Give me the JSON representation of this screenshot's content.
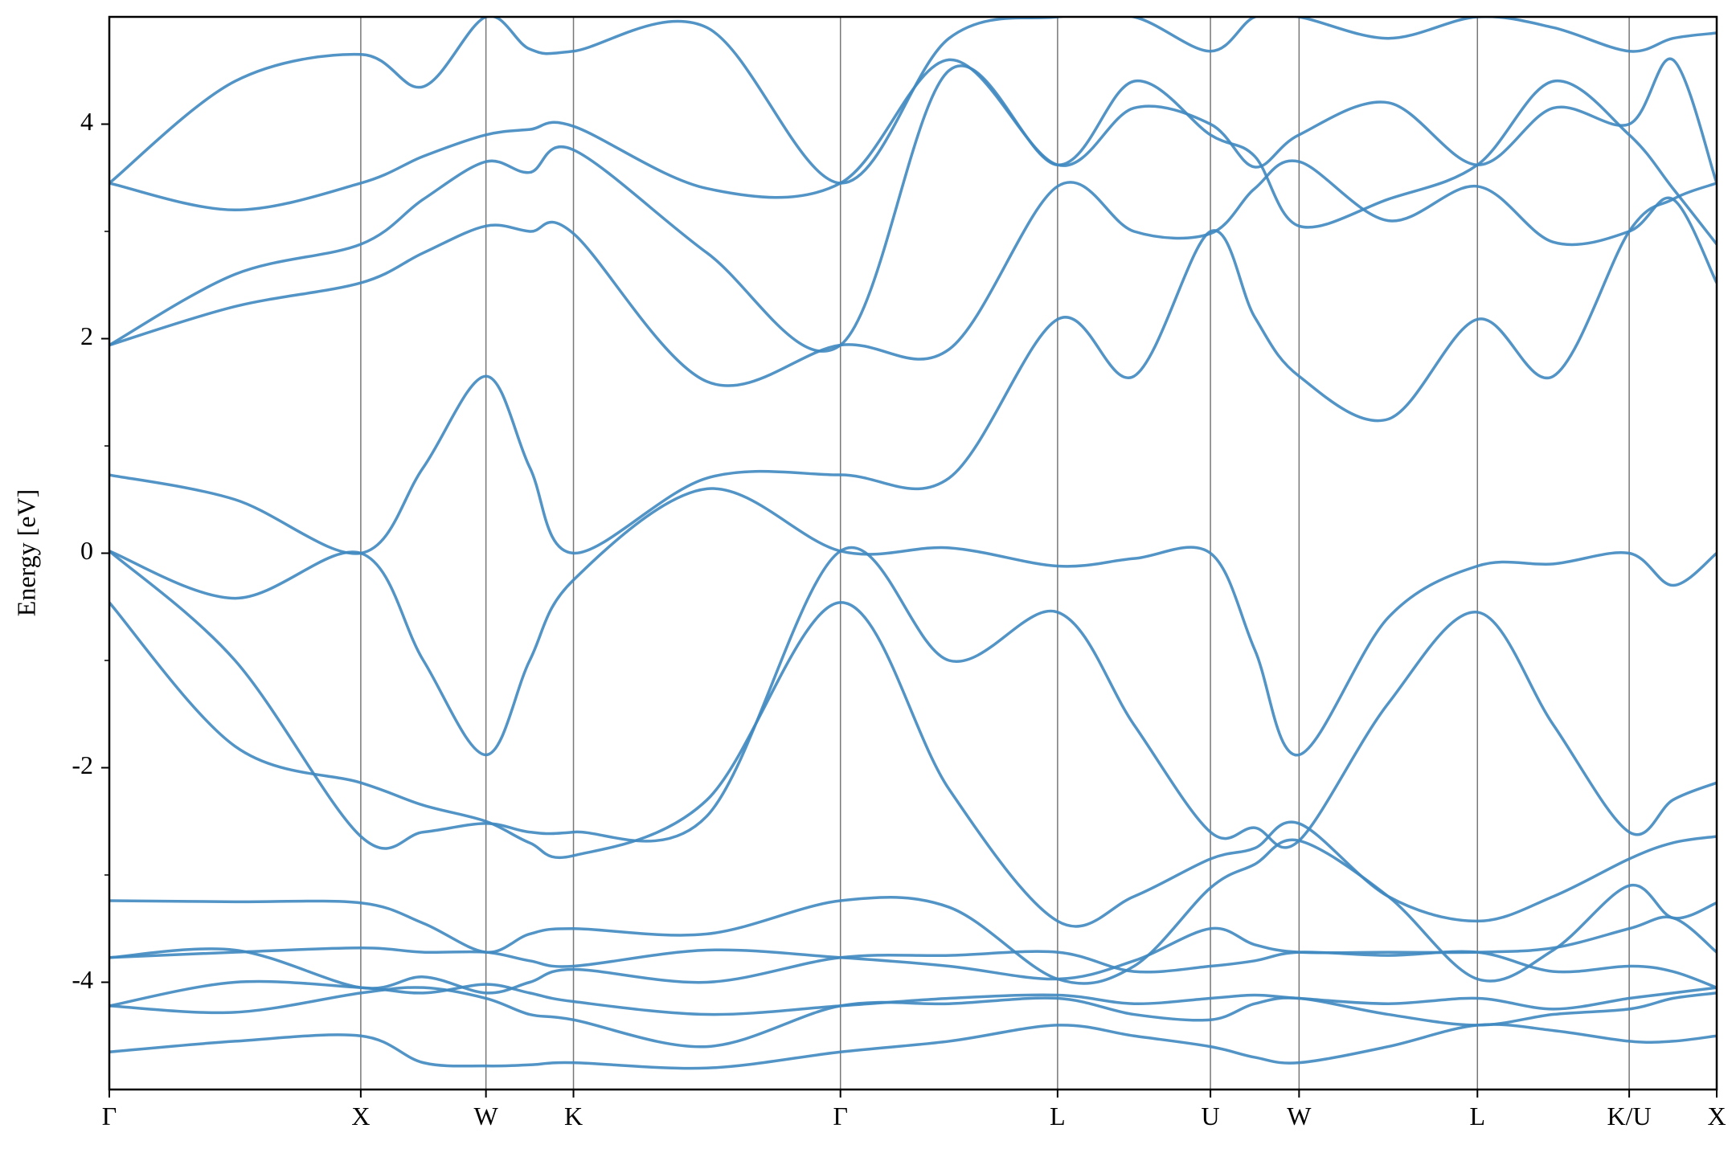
{
  "chart_data": {
    "type": "line",
    "ylabel": "Energy [eV]",
    "ylim": [
      -5,
      5
    ],
    "yticks": [
      -4,
      -2,
      0,
      2,
      4
    ],
    "yminorticks": [
      -3,
      -1,
      1,
      3
    ],
    "xlim": [
      0,
      14.51
    ],
    "xticks": [
      {
        "value": 0,
        "label": "Γ"
      },
      {
        "value": 2.27,
        "label": "X"
      },
      {
        "value": 3.4,
        "label": "W"
      },
      {
        "value": 4.19,
        "label": "K"
      },
      {
        "value": 6.6,
        "label": "Γ"
      },
      {
        "value": 8.56,
        "label": "L"
      },
      {
        "value": 9.94,
        "label": "U"
      },
      {
        "value": 10.74,
        "label": "W"
      },
      {
        "value": 12.35,
        "label": "L"
      },
      {
        "value": 13.72,
        "label": "K/U"
      },
      {
        "value": 14.51,
        "label": "X"
      }
    ],
    "color": "#3f88c0",
    "x": [
      0,
      1.135,
      2.27,
      2.835,
      3.4,
      3.795,
      4.19,
      5.395,
      6.6,
      7.58,
      8.56,
      9.25,
      9.94,
      10.34,
      10.74,
      11.545,
      12.35,
      13.035,
      13.72,
      14.115,
      14.51
    ],
    "bands": [
      [
        -4.65,
        -4.55,
        -4.5,
        -4.75,
        -4.78,
        -4.77,
        -4.75,
        -4.8,
        -4.65,
        -4.55,
        -4.4,
        -4.5,
        -4.6,
        -4.7,
        -4.75,
        -4.6,
        -4.4,
        -4.45,
        -4.55,
        -4.55,
        -4.5
      ],
      [
        -4.22,
        -4.28,
        -4.1,
        -4.05,
        -4.15,
        -4.3,
        -4.35,
        -4.6,
        -4.22,
        -4.2,
        -4.15,
        -4.3,
        -4.35,
        -4.2,
        -4.15,
        -4.3,
        -4.4,
        -4.3,
        -4.25,
        -4.15,
        -4.1
      ],
      [
        -4.22,
        -4.0,
        -4.05,
        -4.1,
        -4.02,
        -4.1,
        -4.18,
        -4.3,
        -4.22,
        -4.15,
        -4.12,
        -4.2,
        -4.15,
        -4.12,
        -4.15,
        -4.2,
        -4.15,
        -4.25,
        -4.15,
        -4.1,
        -4.05
      ],
      [
        -3.77,
        -3.7,
        -4.05,
        -3.95,
        -4.1,
        -4.0,
        -3.88,
        -4.0,
        -3.77,
        -3.75,
        -3.72,
        -3.9,
        -3.85,
        -3.8,
        -3.72,
        -3.75,
        -3.72,
        -3.9,
        -3.85,
        -3.9,
        -4.05
      ],
      [
        -3.77,
        -3.72,
        -3.68,
        -3.72,
        -3.72,
        -3.8,
        -3.85,
        -3.7,
        -3.77,
        -3.85,
        -3.97,
        -3.8,
        -3.5,
        -3.65,
        -3.72,
        -3.72,
        -3.72,
        -3.68,
        -3.5,
        -3.4,
        -3.72
      ],
      [
        -3.24,
        -3.25,
        -3.26,
        -3.45,
        -3.72,
        -3.55,
        -3.5,
        -3.55,
        -3.24,
        -3.3,
        -3.97,
        -3.85,
        -3.12,
        -2.9,
        -2.68,
        -3.2,
        -3.97,
        -3.7,
        -3.1,
        -3.4,
        -3.26
      ],
      [
        -0.46,
        -1.8,
        -2.14,
        -2.35,
        -2.5,
        -2.7,
        -2.82,
        -2.3,
        -0.46,
        -2.2,
        -3.43,
        -3.2,
        -2.85,
        -2.75,
        -2.52,
        -3.2,
        -3.43,
        -3.2,
        -2.85,
        -2.7,
        -2.64
      ],
      [
        0.02,
        -1.0,
        -2.64,
        -2.6,
        -2.52,
        -2.6,
        -2.6,
        -2.45,
        0.02,
        -1.0,
        -0.55,
        -1.6,
        -2.6,
        -2.56,
        -2.68,
        -1.4,
        -0.55,
        -1.6,
        -2.6,
        -2.3,
        -2.14
      ],
      [
        0.02,
        -0.42,
        0.0,
        -1.0,
        -1.88,
        -1.0,
        -0.25,
        0.6,
        0.02,
        0.05,
        -0.12,
        -0.05,
        0.0,
        -0.9,
        -1.88,
        -0.6,
        -0.12,
        -0.1,
        0.0,
        -0.3,
        0.0
      ],
      [
        0.73,
        0.5,
        0.0,
        0.8,
        1.65,
        0.8,
        0.0,
        0.7,
        0.73,
        0.7,
        2.18,
        1.65,
        3.0,
        2.2,
        1.65,
        1.25,
        2.18,
        1.65,
        3.0,
        3.3,
        3.45
      ],
      [
        1.94,
        2.3,
        2.52,
        2.8,
        3.05,
        3.0,
        2.98,
        1.6,
        1.94,
        1.9,
        3.42,
        3.0,
        2.98,
        3.4,
        3.65,
        3.1,
        3.42,
        2.9,
        3.0,
        3.3,
        2.52
      ],
      [
        1.94,
        2.6,
        2.88,
        3.3,
        3.65,
        3.55,
        3.76,
        2.8,
        1.94,
        4.5,
        3.62,
        4.4,
        3.9,
        3.7,
        3.05,
        3.3,
        3.62,
        4.4,
        3.9,
        3.4,
        2.88
      ],
      [
        3.45,
        3.2,
        3.45,
        3.7,
        3.9,
        3.95,
        3.98,
        3.4,
        3.45,
        4.6,
        3.62,
        4.15,
        4.0,
        3.6,
        3.9,
        4.2,
        3.62,
        4.15,
        4.0,
        4.6,
        3.45
      ],
      [
        3.45,
        4.4,
        4.65,
        4.35,
        5.0,
        4.7,
        4.68,
        4.9,
        3.45,
        4.8,
        5.0,
        5.0,
        4.68,
        5.0,
        5.0,
        4.8,
        5.0,
        4.9,
        4.68,
        4.8,
        4.85
      ]
    ]
  }
}
